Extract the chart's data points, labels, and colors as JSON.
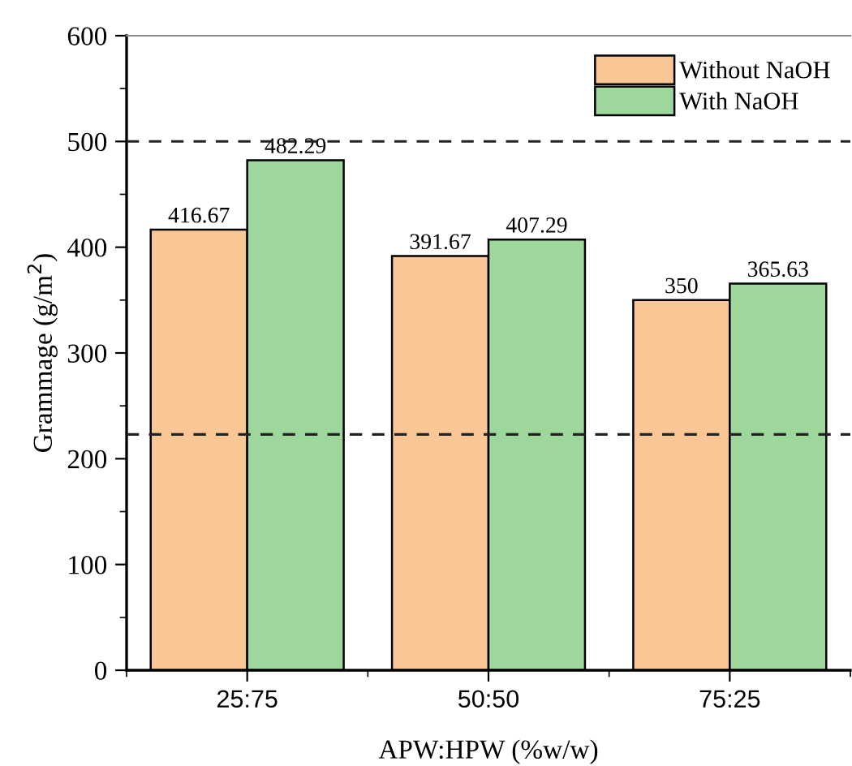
{
  "chart_data": {
    "type": "bar",
    "xlabel": "APW:HPW (%w/w)",
    "ylabel": "Grammage (g/m$^{2}$)",
    "categories": [
      "25:75",
      "50:50",
      "75:25"
    ],
    "series": [
      {
        "name": "Without NaOH",
        "color": "#f9c796",
        "values": [
          416.67,
          391.67,
          350
        ]
      },
      {
        "name": "With NaOH",
        "color": "#9dd79b",
        "values": [
          482.29,
          407.29,
          365.63
        ]
      }
    ],
    "data_labels": true,
    "ylim": [
      0,
      600
    ],
    "yticks": [
      0,
      100,
      200,
      300,
      400,
      500,
      600
    ],
    "grid": false,
    "legend": "top right",
    "ref_lines": [
      {
        "axis": "y",
        "value": 500,
        "line_style": "dashed"
      },
      {
        "axis": "y",
        "value": 223,
        "line_style": "dashed"
      }
    ]
  }
}
